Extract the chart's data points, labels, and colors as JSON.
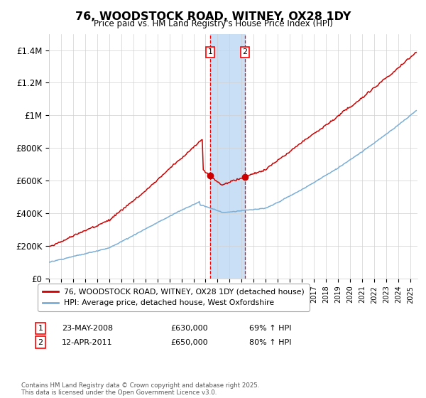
{
  "title": "76, WOODSTOCK ROAD, WITNEY, OX28 1DY",
  "subtitle": "Price paid vs. HM Land Registry's House Price Index (HPI)",
  "ylim": [
    0,
    1500000
  ],
  "yticks": [
    0,
    200000,
    400000,
    600000,
    800000,
    1000000,
    1200000,
    1400000
  ],
  "ytick_labels": [
    "£0",
    "£200K",
    "£400K",
    "£600K",
    "£800K",
    "£1M",
    "£1.2M",
    "£1.4M"
  ],
  "sale1_date": "23-MAY-2008",
  "sale1_price": 630000,
  "sale1_hpi_pct": "69% ↑ HPI",
  "sale2_date": "12-APR-2011",
  "sale2_price": 650000,
  "sale2_hpi_pct": "80% ↑ HPI",
  "sale1_x": 2008.38,
  "sale2_x": 2011.27,
  "highlight_color": "#c8dff5",
  "red_line_color": "#cc0000",
  "blue_line_color": "#7aaed6",
  "footnote": "Contains HM Land Registry data © Crown copyright and database right 2025.\nThis data is licensed under the Open Government Licence v3.0.",
  "legend1_label": "76, WOODSTOCK ROAD, WITNEY, OX28 1DY (detached house)",
  "legend2_label": "HPI: Average price, detached house, West Oxfordshire"
}
